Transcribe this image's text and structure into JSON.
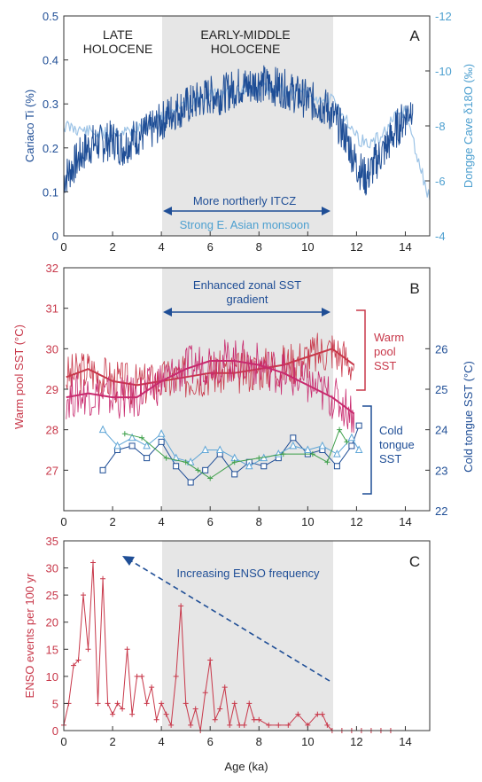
{
  "chart_data": [
    {
      "panel": "A",
      "type": "line",
      "xlim": [
        0,
        15
      ],
      "x_ticks": [
        0,
        2,
        4,
        6,
        8,
        10,
        12,
        14
      ],
      "ylim_left": [
        0,
        0.5
      ],
      "y_ticks_left": [
        "0",
        "0.1",
        "0.2",
        "0.3",
        "0.4",
        "0.5"
      ],
      "ylabel_left": "Cariaco Ti (%)",
      "ylim_right": [
        -4,
        -12
      ],
      "y_ticks_right": [
        "-4",
        "-6",
        "-8",
        "-10",
        "-12"
      ],
      "ylabel_right": "Dongge Cave δ18O (‰)",
      "shaded_x": [
        4,
        11
      ],
      "grid": false,
      "text": {
        "late_1": "LATE",
        "late_2": "HOLOCENE",
        "early_1": "EARLY-MIDDLE",
        "early_2": "HOLOCENE",
        "itcz": "More northerly ITCZ",
        "monsoon": "Strong E. Asian monsoon",
        "panel": "A"
      },
      "series": [
        {
          "label": "Cariaco Ti",
          "color": "#1f4e96",
          "x": [
            0.0,
            0.4,
            0.8,
            1.2,
            1.6,
            2.0,
            2.4,
            2.8,
            3.2,
            3.6,
            4.0,
            4.4,
            4.8,
            5.2,
            5.6,
            6.0,
            6.4,
            6.8,
            7.2,
            7.6,
            8.0,
            8.4,
            8.8,
            9.2,
            9.6,
            10.0,
            10.4,
            10.8,
            11.2,
            11.6,
            12.0,
            12.4,
            12.8,
            13.2,
            13.6,
            14.0,
            14.3
          ],
          "y": [
            0.13,
            0.16,
            0.19,
            0.21,
            0.21,
            0.22,
            0.2,
            0.22,
            0.23,
            0.24,
            0.26,
            0.28,
            0.29,
            0.3,
            0.31,
            0.32,
            0.32,
            0.33,
            0.34,
            0.34,
            0.35,
            0.34,
            0.34,
            0.33,
            0.32,
            0.31,
            0.3,
            0.29,
            0.26,
            0.22,
            0.16,
            0.13,
            0.17,
            0.2,
            0.24,
            0.27,
            0.3
          ]
        },
        {
          "label": "Dongge Cave δ18O",
          "color": "#9cc3e6",
          "x": [
            0.0,
            0.5,
            1.0,
            1.5,
            2.0,
            2.5,
            3.0,
            3.5,
            4.0,
            4.5,
            5.0,
            5.5,
            6.0,
            6.5,
            7.0,
            7.5,
            8.0,
            8.5,
            9.0,
            9.5,
            10.0,
            10.5,
            11.0,
            11.5,
            12.0,
            12.5,
            13.0,
            13.5,
            14.0,
            14.5,
            15.0
          ],
          "y": [
            -8.0,
            -7.9,
            -7.8,
            -7.7,
            -7.8,
            -7.8,
            -7.9,
            -8.0,
            -8.3,
            -8.6,
            -8.8,
            -9.0,
            -9.1,
            -9.2,
            -9.2,
            -9.3,
            -9.3,
            -9.4,
            -9.3,
            -9.2,
            -9.1,
            -9.0,
            -8.9,
            -8.4,
            -7.6,
            -7.3,
            -7.6,
            -8.2,
            -8.6,
            -6.8,
            -5.3
          ]
        }
      ]
    },
    {
      "panel": "B",
      "type": "line",
      "xlim": [
        0,
        15
      ],
      "x_ticks": [
        0,
        2,
        4,
        6,
        8,
        10,
        12,
        14
      ],
      "ylim_left": [
        26,
        32
      ],
      "y_ticks_left": [
        "27",
        "28",
        "29",
        "30",
        "31",
        "32"
      ],
      "ylabel_left": "Warm pool SST (°C)",
      "ylim_right": [
        22,
        28
      ],
      "y_ticks_right": [
        "22",
        "23",
        "24",
        "25",
        "26"
      ],
      "ylabel_right": "Cold tongue SST (°C)",
      "shaded_x": [
        4,
        11
      ],
      "grid": false,
      "text": {
        "gradient_1": "Enhanced zonal SST",
        "gradient_2": "gradient",
        "warm_1": "Warm",
        "warm_2": "pool",
        "warm_3": "SST",
        "cold_1": "Cold",
        "cold_2": "tongue",
        "cold_3": "SST",
        "panel": "B"
      },
      "series": [
        {
          "label": "Warm pool smooth 1",
          "color": "#c8384a",
          "axis": "left",
          "x": [
            0.1,
            1,
            2,
            3,
            4,
            5,
            6,
            7,
            8,
            9,
            10,
            11,
            11.9
          ],
          "y": [
            29.3,
            29.5,
            29.2,
            29.1,
            29.2,
            29.3,
            29.4,
            29.4,
            29.5,
            29.6,
            29.8,
            30.0,
            29.6
          ]
        },
        {
          "label": "Warm pool smooth 2",
          "color": "#c82a6e",
          "axis": "left",
          "x": [
            0.1,
            1,
            2,
            3,
            4,
            5,
            6,
            7,
            8,
            9,
            10,
            11,
            11.9
          ],
          "y": [
            28.8,
            28.9,
            28.8,
            28.8,
            29.2,
            29.5,
            29.7,
            29.7,
            29.6,
            29.4,
            29.1,
            28.8,
            28.4
          ]
        },
        {
          "label": "Cold tongue record 1",
          "color": "#1f4e96",
          "axis": "right",
          "x": [
            1.6,
            2.2,
            2.8,
            3.4,
            4.0,
            4.6,
            5.2,
            5.8,
            6.4,
            7.0,
            7.6,
            8.2,
            8.8,
            9.4,
            10.0,
            10.6,
            11.2,
            11.8,
            12.1
          ],
          "y": [
            23.0,
            23.5,
            23.6,
            23.3,
            23.7,
            23.1,
            22.7,
            23.0,
            23.4,
            22.9,
            23.2,
            23.1,
            23.3,
            23.8,
            23.4,
            23.5,
            23.1,
            23.6,
            24.1
          ]
        },
        {
          "label": "Cold tongue record 2",
          "color": "#5ea5d6",
          "axis": "right",
          "x": [
            1.6,
            2.2,
            2.8,
            3.4,
            4.0,
            4.6,
            5.2,
            5.8,
            6.4,
            7.0,
            7.6,
            8.2,
            8.8,
            9.4,
            10.0,
            10.6,
            11.2,
            11.8,
            12.1
          ],
          "y": [
            24.0,
            23.6,
            23.8,
            23.6,
            23.9,
            23.3,
            23.2,
            23.5,
            23.5,
            23.3,
            23.1,
            23.3,
            23.4,
            23.6,
            23.5,
            23.6,
            23.4,
            23.8,
            23.5
          ]
        },
        {
          "label": "Cold tongue record 3",
          "color": "#3ea04a",
          "axis": "right",
          "x": [
            2.5,
            3.2,
            4.2,
            5.0,
            5.5,
            6.0,
            7.0,
            8.0,
            9.0,
            10.2,
            10.8,
            11.3,
            11.6
          ],
          "y": [
            23.9,
            23.8,
            23.3,
            23.2,
            23.0,
            22.8,
            23.2,
            23.3,
            23.4,
            23.4,
            23.2,
            24.0,
            23.7
          ]
        }
      ]
    },
    {
      "panel": "C",
      "type": "line",
      "xlim": [
        0,
        15
      ],
      "x_ticks": [
        0,
        2,
        4,
        6,
        8,
        10,
        12,
        14
      ],
      "ylim": [
        0,
        35
      ],
      "y_ticks": [
        "0",
        "5",
        "10",
        "15",
        "20",
        "25",
        "30",
        "35"
      ],
      "xlabel": "Age (ka)",
      "ylabel": "ENSO events per 100 yr",
      "shaded_x": [
        4,
        11
      ],
      "grid": false,
      "text": {
        "trend": "Increasing ENSO frequency",
        "panel": "C"
      },
      "series": [
        {
          "label": "ENSO events per 100 yr",
          "color": "#c8384a",
          "x": [
            0.0,
            0.2,
            0.4,
            0.6,
            0.8,
            1.0,
            1.2,
            1.4,
            1.6,
            1.8,
            2.0,
            2.2,
            2.4,
            2.6,
            2.8,
            3.0,
            3.2,
            3.4,
            3.6,
            3.8,
            4.0,
            4.2,
            4.4,
            4.6,
            4.8,
            5.0,
            5.2,
            5.4,
            5.6,
            5.8,
            6.0,
            6.2,
            6.4,
            6.6,
            6.8,
            7.0,
            7.2,
            7.4,
            7.6,
            7.8,
            8.0,
            8.4,
            8.8,
            9.2,
            9.6,
            10.0,
            10.4,
            10.6,
            10.8,
            11.0,
            11.4,
            11.8,
            12.2,
            12.6,
            13.0,
            13.4
          ],
          "y": [
            1,
            5,
            12,
            13,
            25,
            15,
            31,
            5,
            28,
            5,
            3,
            5,
            4,
            15,
            3,
            10,
            10,
            5,
            8,
            2,
            5,
            3,
            1,
            10,
            23,
            5,
            1,
            4,
            0,
            7,
            13,
            2,
            4,
            8,
            1,
            5,
            1,
            1,
            5,
            2,
            2,
            1,
            1,
            1,
            3,
            1,
            3,
            3,
            1,
            0,
            0,
            0,
            0,
            0,
            0,
            0
          ]
        }
      ]
    }
  ]
}
